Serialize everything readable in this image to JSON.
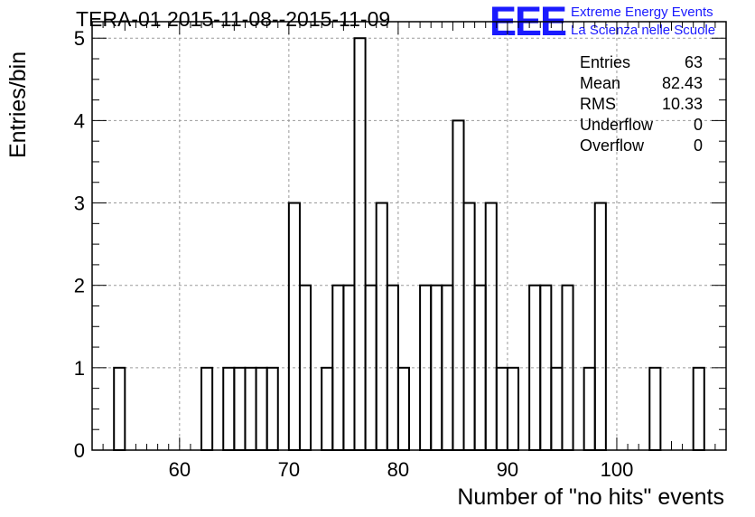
{
  "title": "TERA-01 2015-11-08--2015-11-09",
  "logo": {
    "mark": "EEE",
    "line1": "Extreme Energy Events",
    "line2": "La Scienza nelle Scuole",
    "color": "#1a1aff"
  },
  "stats": {
    "rows": [
      {
        "label": "Entries",
        "value": "63"
      },
      {
        "label": "Mean",
        "value": "82.43"
      },
      {
        "label": "RMS",
        "value": "10.33"
      },
      {
        "label": "Underflow",
        "value": "0"
      },
      {
        "label": "Overflow",
        "value": "0"
      }
    ]
  },
  "chart_data": {
    "type": "bar",
    "subtype": "histogram-step",
    "title": "TERA-01 2015-11-08--2015-11-09",
    "xlabel": "Number of \"no hits\" events",
    "ylabel": "Entries/bin",
    "xlim": [
      52,
      110
    ],
    "ylim": [
      0,
      5.2
    ],
    "bin_width": 1,
    "x_ticks": [
      60,
      70,
      80,
      90,
      100
    ],
    "y_ticks": [
      0,
      1,
      2,
      3,
      4,
      5
    ],
    "grid": true,
    "legend": "none",
    "bins": [
      {
        "x": 54.5,
        "count": 1
      },
      {
        "x": 62.5,
        "count": 1
      },
      {
        "x": 64.5,
        "count": 1
      },
      {
        "x": 65.5,
        "count": 1
      },
      {
        "x": 66.5,
        "count": 1
      },
      {
        "x": 67.5,
        "count": 1
      },
      {
        "x": 68.5,
        "count": 1
      },
      {
        "x": 70.5,
        "count": 3
      },
      {
        "x": 71.5,
        "count": 2
      },
      {
        "x": 73.5,
        "count": 1
      },
      {
        "x": 74.5,
        "count": 2
      },
      {
        "x": 75.5,
        "count": 2
      },
      {
        "x": 76.5,
        "count": 5
      },
      {
        "x": 77.5,
        "count": 2
      },
      {
        "x": 78.5,
        "count": 3
      },
      {
        "x": 79.5,
        "count": 2
      },
      {
        "x": 80.5,
        "count": 1
      },
      {
        "x": 82.5,
        "count": 2
      },
      {
        "x": 83.5,
        "count": 2
      },
      {
        "x": 84.5,
        "count": 2
      },
      {
        "x": 85.5,
        "count": 4
      },
      {
        "x": 86.5,
        "count": 3
      },
      {
        "x": 87.5,
        "count": 2
      },
      {
        "x": 88.5,
        "count": 3
      },
      {
        "x": 89.5,
        "count": 1
      },
      {
        "x": 90.5,
        "count": 1
      },
      {
        "x": 92.5,
        "count": 2
      },
      {
        "x": 93.5,
        "count": 2
      },
      {
        "x": 94.5,
        "count": 1
      },
      {
        "x": 95.5,
        "count": 2
      },
      {
        "x": 97.5,
        "count": 1
      },
      {
        "x": 98.5,
        "count": 3
      },
      {
        "x": 103.5,
        "count": 1
      },
      {
        "x": 107.5,
        "count": 1
      }
    ]
  }
}
